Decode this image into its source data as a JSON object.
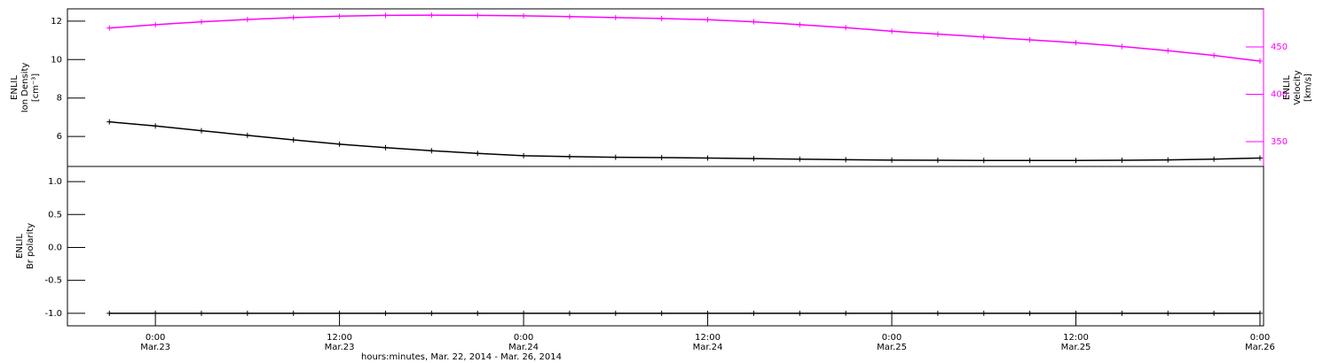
{
  "chart_data": [
    {
      "type": "line",
      "y_label": [
        "ENLIL",
        "Ion Density",
        "[cm⁻³]"
      ],
      "y2_label": [
        "ENLIL",
        "Velocity",
        "[km/s]"
      ],
      "x": [
        "2014-03-22T21:00",
        "2014-03-23T00:00",
        "2014-03-23T03:00",
        "2014-03-23T06:00",
        "2014-03-23T09:00",
        "2014-03-23T12:00",
        "2014-03-23T15:00",
        "2014-03-23T18:00",
        "2014-03-23T21:00",
        "2014-03-24T00:00",
        "2014-03-24T03:00",
        "2014-03-24T06:00",
        "2014-03-24T09:00",
        "2014-03-24T12:00",
        "2014-03-24T15:00",
        "2014-03-24T18:00",
        "2014-03-24T21:00",
        "2014-03-25T00:00",
        "2014-03-25T03:00",
        "2014-03-25T06:00",
        "2014-03-25T09:00",
        "2014-03-25T12:00",
        "2014-03-25T15:00",
        "2014-03-25T18:00",
        "2014-03-25T21:00",
        "2014-03-26T00:00"
      ],
      "xlim": [
        "2014-03-22T18:16",
        "2014-03-26T00:14"
      ],
      "ylim": [
        4.44,
        12.64
      ],
      "yticks": [
        6,
        8,
        10,
        12
      ],
      "y2lim": [
        323.8,
        490.2
      ],
      "y2ticks": [
        350,
        400,
        450
      ],
      "y2color": "#ff00ff",
      "series": [
        {
          "name": "Ion Density",
          "color": "#000000",
          "axis": "y",
          "values": [
            6.76,
            6.55,
            6.3,
            6.06,
            5.82,
            5.6,
            5.42,
            5.26,
            5.12,
            5.0,
            4.95,
            4.92,
            4.9,
            4.88,
            4.85,
            4.82,
            4.79,
            4.77,
            4.76,
            4.75,
            4.75,
            4.75,
            4.76,
            4.78,
            4.82,
            4.88
          ]
        },
        {
          "name": "Velocity",
          "color": "#ff00ff",
          "axis": "y2",
          "values": [
            470,
            473.5,
            476.5,
            479,
            481,
            482.5,
            483.3,
            483.5,
            483.3,
            482.8,
            482,
            481,
            480,
            478.8,
            476.5,
            473.5,
            470.3,
            466.6,
            463.5,
            460.5,
            457.5,
            454.5,
            450.5,
            446,
            441,
            435
          ]
        }
      ]
    },
    {
      "type": "line",
      "y_label": [
        "ENLIL",
        "Br polarity"
      ],
      "x_label": "hours:minutes, Mar. 22, 2014 - Mar. 26, 2014",
      "x": [
        "2014-03-22T21:00",
        "2014-03-23T00:00",
        "2014-03-23T03:00",
        "2014-03-23T06:00",
        "2014-03-23T09:00",
        "2014-03-23T12:00",
        "2014-03-23T15:00",
        "2014-03-23T18:00",
        "2014-03-23T21:00",
        "2014-03-24T00:00",
        "2014-03-24T03:00",
        "2014-03-24T06:00",
        "2014-03-24T09:00",
        "2014-03-24T12:00",
        "2014-03-24T15:00",
        "2014-03-24T18:00",
        "2014-03-24T21:00",
        "2014-03-25T00:00",
        "2014-03-25T03:00",
        "2014-03-25T06:00",
        "2014-03-25T09:00",
        "2014-03-25T12:00",
        "2014-03-25T15:00",
        "2014-03-25T18:00",
        "2014-03-25T21:00",
        "2014-03-26T00:00"
      ],
      "xlim": [
        "2014-03-22T18:16",
        "2014-03-26T00:14"
      ],
      "xticks": [
        {
          "value": "2014-03-23T00:00",
          "label": [
            "0:00",
            "Mar.23"
          ]
        },
        {
          "value": "2014-03-23T12:00",
          "label": [
            "12:00",
            "Mar.23"
          ]
        },
        {
          "value": "2014-03-24T00:00",
          "label": [
            "0:00",
            "Mar.24"
          ]
        },
        {
          "value": "2014-03-24T12:00",
          "label": [
            "12:00",
            "Mar.24"
          ]
        },
        {
          "value": "2014-03-25T00:00",
          "label": [
            "0:00",
            "Mar.25"
          ]
        },
        {
          "value": "2014-03-25T12:00",
          "label": [
            "12:00",
            "Mar.25"
          ]
        },
        {
          "value": "2014-03-26T00:00",
          "label": [
            "0:00",
            "Mar.26"
          ]
        }
      ],
      "ylim": [
        -1.19,
        1.23
      ],
      "yticks": [
        {
          "value": -1,
          "label": "-1.0"
        },
        -0.5,
        {
          "value": 0,
          "label": "0.0"
        },
        0.5,
        {
          "value": 1,
          "label": "1.0"
        }
      ],
      "series": [
        {
          "name": "Br polarity",
          "color": "#000000",
          "axis": "y",
          "values": [
            -1,
            -1,
            -1,
            -1,
            -1,
            -1,
            -1,
            -1,
            -1,
            -1,
            -1,
            -1,
            -1,
            -1,
            -1,
            -1,
            -1,
            -1,
            -1,
            -1,
            -1,
            -1,
            -1,
            -1,
            -1,
            -1
          ]
        }
      ]
    }
  ]
}
